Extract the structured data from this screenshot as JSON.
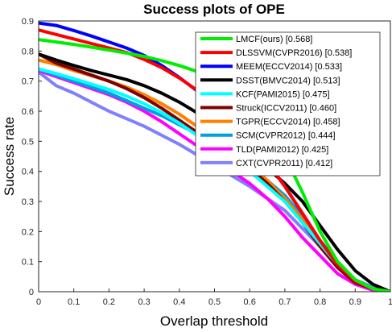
{
  "chart_data": {
    "type": "line",
    "title": "Success plots of OPE",
    "xlabel": "Overlap threshold",
    "ylabel": "Success rate",
    "xlim": [
      0,
      1
    ],
    "ylim": [
      0,
      0.9
    ],
    "xticks": [
      "0",
      "0.1",
      "0.2",
      "0.3",
      "0.4",
      "0.5",
      "0.6",
      "0.7",
      "0.8",
      "0.9",
      "1"
    ],
    "yticks": [
      "0",
      "0.1",
      "0.2",
      "0.3",
      "0.4",
      "0.5",
      "0.6",
      "0.7",
      "0.8",
      "0.9"
    ],
    "grid": false,
    "legend_position": "top-right",
    "x": [
      0,
      0.05,
      0.1,
      0.15,
      0.2,
      0.25,
      0.3,
      0.35,
      0.4,
      0.45,
      0.5,
      0.55,
      0.6,
      0.65,
      0.7,
      0.75,
      0.8,
      0.85,
      0.9,
      0.95,
      1
    ],
    "series": [
      {
        "name": "LMCF(ours) [0.568]",
        "color": "#00ee00",
        "values": [
          0.838,
          0.83,
          0.822,
          0.813,
          0.803,
          0.793,
          0.782,
          0.768,
          0.752,
          0.732,
          0.705,
          0.67,
          0.62,
          0.55,
          0.45,
          0.33,
          0.2,
          0.1,
          0.04,
          0.01,
          0.0
        ]
      },
      {
        "name": "DLSSVM(CVPR2016) [0.538]",
        "color": "#ff0000",
        "values": [
          0.87,
          0.855,
          0.84,
          0.825,
          0.81,
          0.795,
          0.772,
          0.745,
          0.71,
          0.67,
          0.62,
          0.565,
          0.5,
          0.43,
          0.35,
          0.26,
          0.17,
          0.09,
          0.035,
          0.01,
          0.0
        ]
      },
      {
        "name": "MEEM(ECCV2014) [0.533]",
        "color": "#0000ff",
        "values": [
          0.893,
          0.885,
          0.868,
          0.85,
          0.83,
          0.81,
          0.785,
          0.752,
          0.712,
          0.668,
          0.62,
          0.565,
          0.5,
          0.43,
          0.35,
          0.26,
          0.17,
          0.09,
          0.035,
          0.01,
          0.0
        ]
      },
      {
        "name": "DSST(BMVC2014) [0.513]",
        "color": "#000000",
        "values": [
          0.79,
          0.77,
          0.752,
          0.735,
          0.72,
          0.705,
          0.685,
          0.66,
          0.63,
          0.595,
          0.555,
          0.51,
          0.46,
          0.41,
          0.36,
          0.3,
          0.22,
          0.14,
          0.07,
          0.025,
          0.0
        ]
      },
      {
        "name": "KCF(PAMI2015) [0.475]",
        "color": "#00ffff",
        "values": [
          0.74,
          0.725,
          0.708,
          0.69,
          0.672,
          0.65,
          0.625,
          0.595,
          0.56,
          0.52,
          0.48,
          0.44,
          0.4,
          0.35,
          0.3,
          0.23,
          0.16,
          0.09,
          0.04,
          0.01,
          0.0
        ]
      },
      {
        "name": "Struck(ICCV2011) [0.460]",
        "color": "#800000",
        "values": [
          0.79,
          0.76,
          0.74,
          0.72,
          0.7,
          0.675,
          0.645,
          0.61,
          0.57,
          0.53,
          0.49,
          0.45,
          0.41,
          0.36,
          0.3,
          0.23,
          0.15,
          0.08,
          0.03,
          0.01,
          0.0
        ]
      },
      {
        "name": "TGPR(ECCV2014) [0.458]",
        "color": "#ff8000",
        "values": [
          0.77,
          0.755,
          0.735,
          0.718,
          0.7,
          0.68,
          0.655,
          0.625,
          0.59,
          0.55,
          0.51,
          0.47,
          0.425,
          0.37,
          0.31,
          0.24,
          0.16,
          0.09,
          0.035,
          0.01,
          0.0
        ]
      },
      {
        "name": "SCM(CVPR2012) [0.444]",
        "color": "#00a0e0",
        "values": [
          0.74,
          0.72,
          0.7,
          0.68,
          0.66,
          0.635,
          0.61,
          0.585,
          0.555,
          0.525,
          0.495,
          0.46,
          0.42,
          0.37,
          0.32,
          0.25,
          0.17,
          0.1,
          0.04,
          0.01,
          0.0
        ]
      },
      {
        "name": "TLD(PAMI2012) [0.425]",
        "color": "#ff00ff",
        "values": [
          0.735,
          0.715,
          0.695,
          0.675,
          0.655,
          0.63,
          0.6,
          0.565,
          0.525,
          0.485,
          0.44,
          0.4,
          0.36,
          0.31,
          0.25,
          0.18,
          0.12,
          0.06,
          0.025,
          0.005,
          0.0
        ]
      },
      {
        "name": "CXT(CVPR2011) [0.412]",
        "color": "#8080ff",
        "values": [
          0.73,
          0.685,
          0.66,
          0.63,
          0.6,
          0.575,
          0.55,
          0.52,
          0.49,
          0.455,
          0.42,
          0.385,
          0.35,
          0.31,
          0.27,
          0.21,
          0.15,
          0.085,
          0.04,
          0.015,
          0.0
        ]
      }
    ]
  }
}
